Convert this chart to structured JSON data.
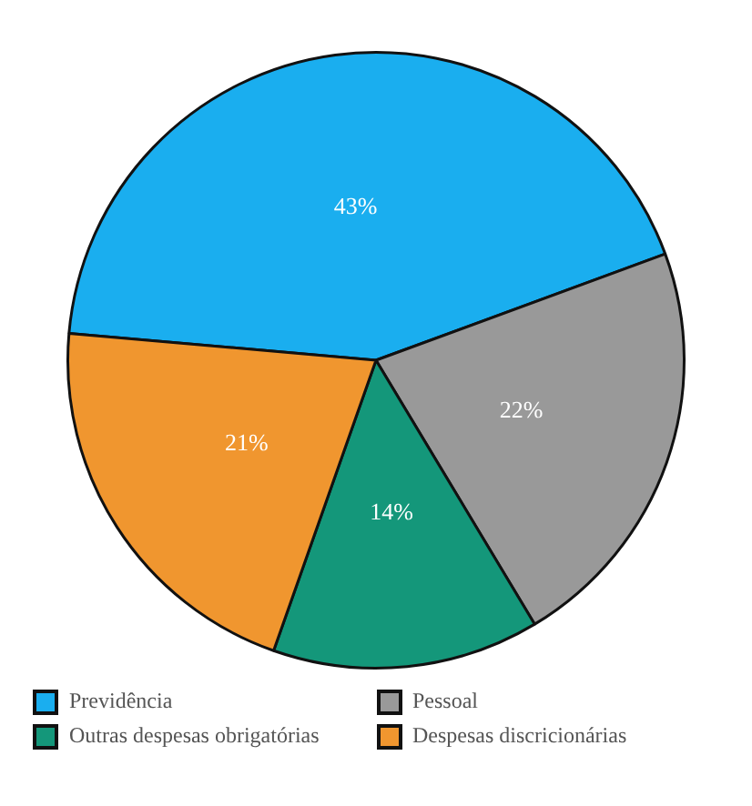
{
  "chart_data": {
    "type": "pie",
    "categories": [
      "Previdência",
      "Pessoal",
      "Outras despesas obrigatórias",
      "Despesas discricionárias"
    ],
    "values": [
      43,
      22,
      14,
      21
    ],
    "colors": [
      "#1aaeef",
      "#999999",
      "#14977a",
      "#f0962f"
    ],
    "value_labels": [
      "43%",
      "22%",
      "14%",
      "21%"
    ],
    "legend": "bottom"
  }
}
